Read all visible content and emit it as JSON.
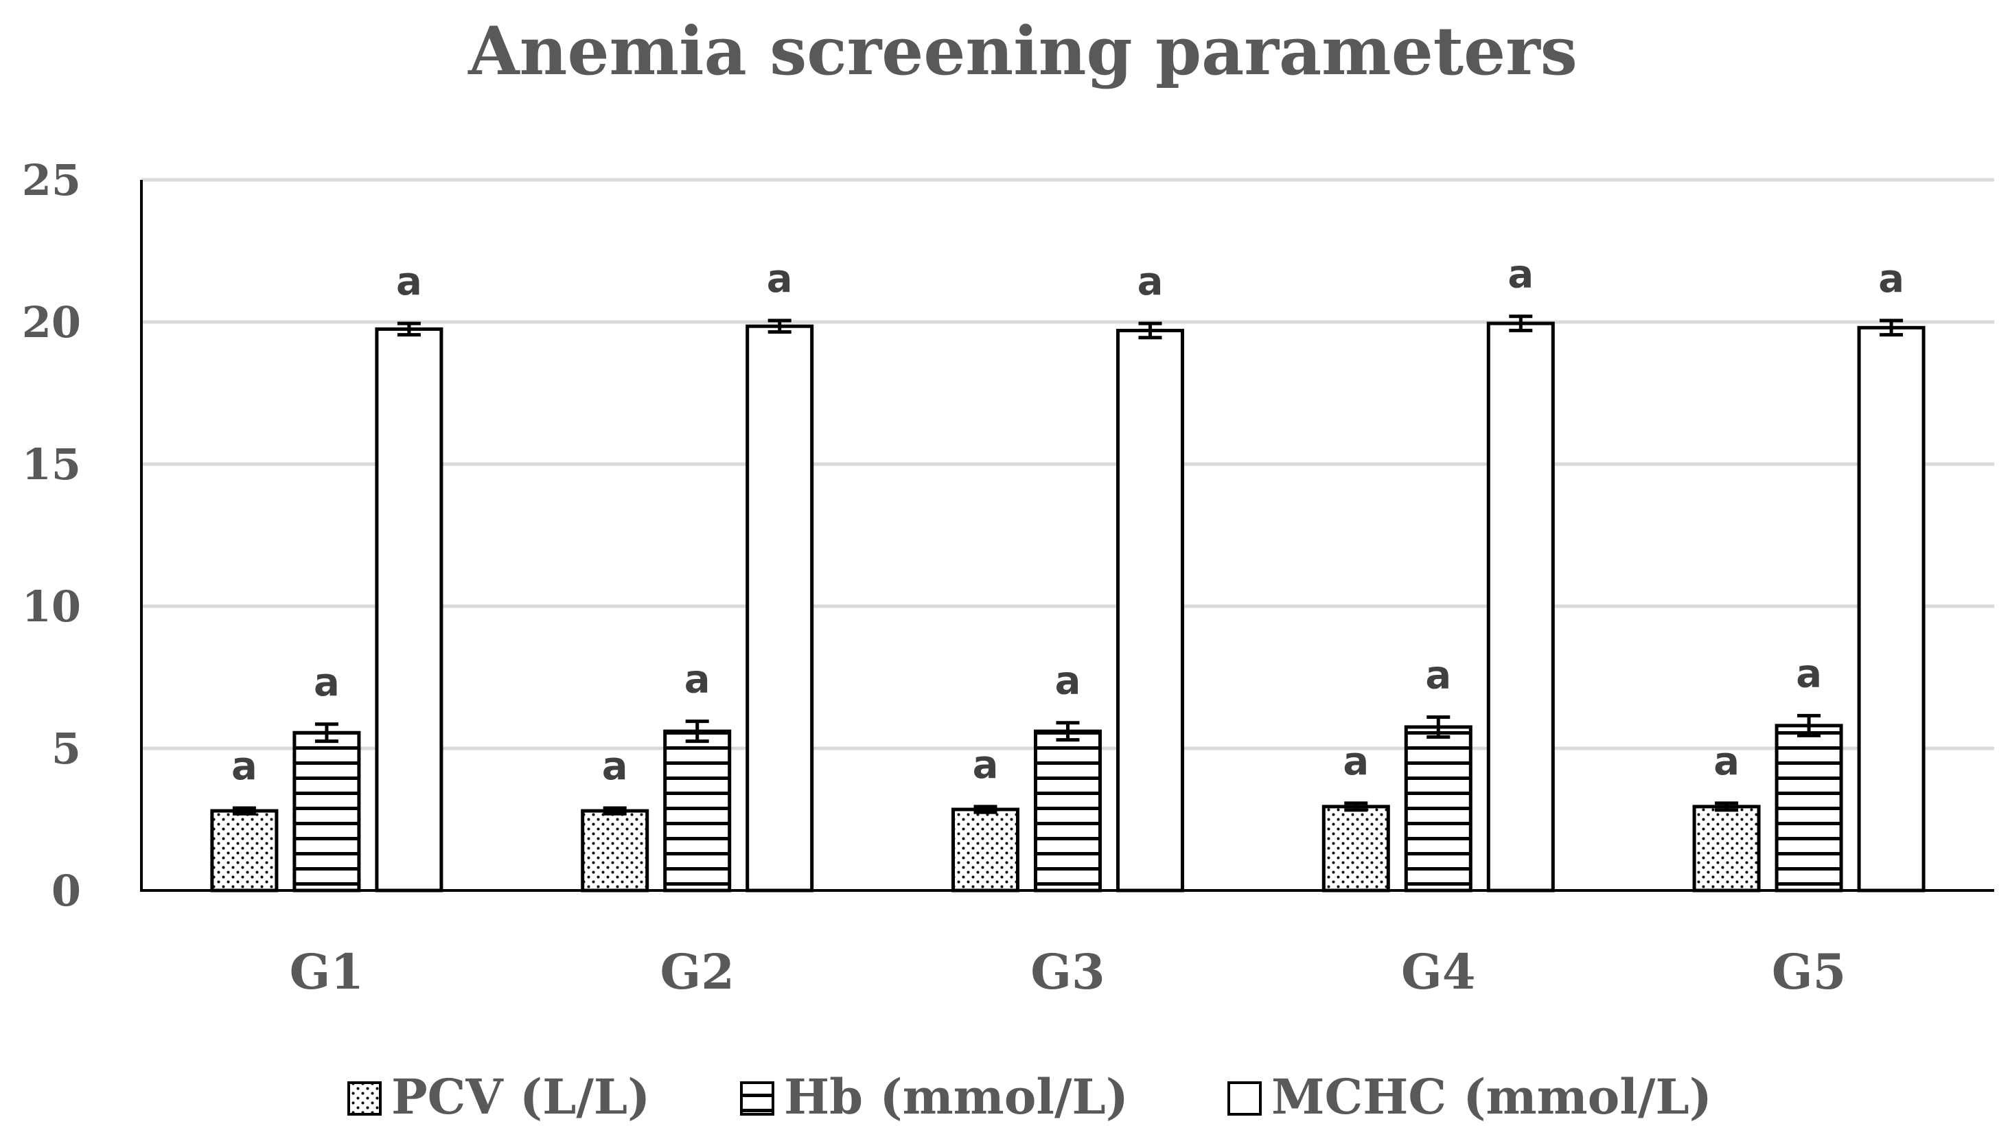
{
  "chart_data": {
    "type": "bar",
    "title": "Anemia screening parameters",
    "xlabel": "",
    "ylabel": "",
    "ylim": [
      0,
      25
    ],
    "yticks": [
      0,
      5,
      10,
      15,
      20,
      25
    ],
    "grid": true,
    "legend_position": "bottom",
    "categories": [
      "G1",
      "G2",
      "G3",
      "G4",
      "G5"
    ],
    "series": [
      {
        "name": "PCV (L/L)",
        "pattern": "dots",
        "values": [
          2.8,
          2.8,
          2.85,
          2.95,
          2.95
        ],
        "errors": [
          0.1,
          0.1,
          0.1,
          0.12,
          0.12
        ],
        "labels": [
          "a",
          "a",
          "a",
          "a",
          "a"
        ]
      },
      {
        "name": "Hb (mmol/L)",
        "pattern": "horizontal-lines",
        "values": [
          5.55,
          5.6,
          5.6,
          5.75,
          5.8
        ],
        "errors": [
          0.3,
          0.35,
          0.3,
          0.35,
          0.35
        ],
        "labels": [
          "a",
          "a",
          "a",
          "a",
          "a"
        ]
      },
      {
        "name": "MCHC (mmol/L)",
        "pattern": "solid-white",
        "values": [
          19.75,
          19.85,
          19.7,
          19.95,
          19.8
        ],
        "errors": [
          0.2,
          0.2,
          0.25,
          0.25,
          0.25
        ],
        "labels": [
          "a",
          "a",
          "a",
          "a",
          "a"
        ]
      }
    ]
  }
}
